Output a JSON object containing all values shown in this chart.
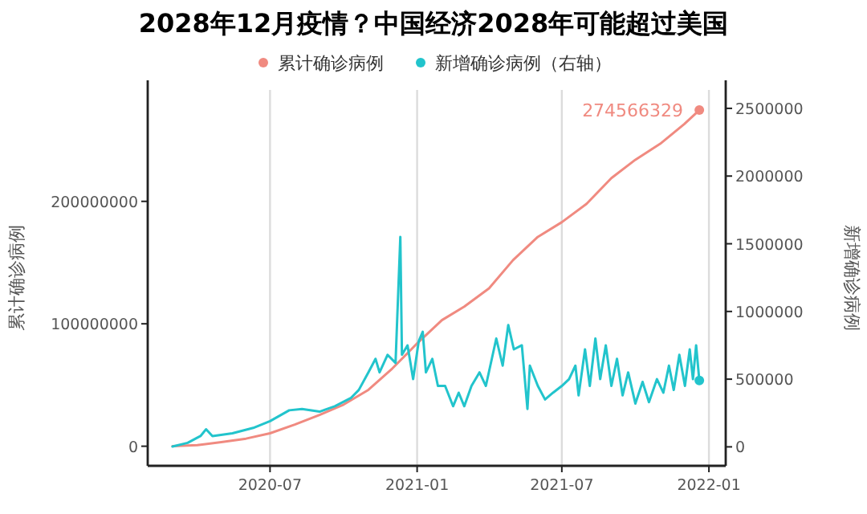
{
  "chart_data": {
    "type": "line",
    "title": "2028年12月疫情？中国经济2028年可能超过美国",
    "ylabel": "累计确诊病例",
    "y2label": "新增确诊病例",
    "xlim": [
      "2020-01-30",
      "2022-01-22"
    ],
    "xticks": [
      {
        "value": "2020-07-01",
        "label": "2020-07"
      },
      {
        "value": "2021-01-01",
        "label": "2021-01"
      },
      {
        "value": "2021-07-01",
        "label": "2021-07"
      },
      {
        "value": "2022-01-01",
        "label": "2022-01"
      }
    ],
    "ylim": [
      -16000000,
      291000000
    ],
    "yticks": [
      0,
      100000000,
      200000000
    ],
    "y2lim": [
      -140000,
      2636000
    ],
    "y2ticks": [
      0,
      500000,
      1000000,
      1500000,
      2000000,
      2500000
    ],
    "grid": "x",
    "legend": "top",
    "annotations": [
      {
        "text": "274566329",
        "x": "2021-12-20",
        "y": 274566329
      }
    ],
    "series": [
      {
        "name": "累计确诊病例",
        "color": "#f08a80",
        "x": [
          "2020-03-01",
          "2020-04-01",
          "2020-05-01",
          "2020-06-01",
          "2020-07-01",
          "2020-08-01",
          "2020-09-01",
          "2020-10-01",
          "2020-11-01",
          "2020-12-01",
          "2021-01-01",
          "2021-02-01",
          "2021-03-01",
          "2021-04-01",
          "2021-05-01",
          "2021-06-01",
          "2021-07-01",
          "2021-08-01",
          "2021-09-01",
          "2021-10-01",
          "2021-11-01",
          "2021-12-01",
          "2021-12-20"
        ],
        "values": [
          90000,
          900000,
          3300000,
          6200000,
          10600000,
          17700000,
          25600000,
          34000000,
          46000000,
          63500000,
          84000000,
          103000000,
          114000000,
          129000000,
          152000000,
          171000000,
          183000000,
          198000000,
          219000000,
          234000000,
          247000000,
          263000000,
          274566329
        ]
      },
      {
        "name": "新增确诊病例（右轴）",
        "color": "#22c4cc",
        "axis": "y2",
        "x": [
          "2020-03-01",
          "2020-03-20",
          "2020-04-05",
          "2020-04-12",
          "2020-04-20",
          "2020-05-15",
          "2020-06-10",
          "2020-07-01",
          "2020-07-25",
          "2020-08-10",
          "2020-09-01",
          "2020-09-20",
          "2020-10-10",
          "2020-10-20",
          "2020-11-01",
          "2020-11-10",
          "2020-11-15",
          "2020-11-25",
          "2020-12-05",
          "2020-12-11",
          "2020-12-13",
          "2020-12-20",
          "2020-12-27",
          "2021-01-03",
          "2021-01-08",
          "2021-01-12",
          "2021-01-20",
          "2021-01-27",
          "2021-02-05",
          "2021-02-15",
          "2021-02-22",
          "2021-03-01",
          "2021-03-10",
          "2021-03-20",
          "2021-03-28",
          "2021-04-10",
          "2021-04-18",
          "2021-04-25",
          "2021-05-02",
          "2021-05-12",
          "2021-05-19",
          "2021-05-22",
          "2021-06-01",
          "2021-06-10",
          "2021-06-20",
          "2021-07-01",
          "2021-07-10",
          "2021-07-18",
          "2021-07-22",
          "2021-07-30",
          "2021-08-05",
          "2021-08-12",
          "2021-08-18",
          "2021-08-25",
          "2021-09-01",
          "2021-09-08",
          "2021-09-15",
          "2021-09-22",
          "2021-10-01",
          "2021-10-10",
          "2021-10-18",
          "2021-10-28",
          "2021-11-05",
          "2021-11-12",
          "2021-11-18",
          "2021-11-25",
          "2021-12-02",
          "2021-12-08",
          "2021-12-12",
          "2021-12-16",
          "2021-12-20"
        ],
        "values": [
          2000,
          30000,
          80000,
          130000,
          80000,
          100000,
          140000,
          190000,
          270000,
          280000,
          260000,
          300000,
          360000,
          420000,
          550000,
          650000,
          550000,
          680000,
          620000,
          1550000,
          680000,
          750000,
          500000,
          780000,
          850000,
          550000,
          650000,
          450000,
          450000,
          300000,
          400000,
          300000,
          450000,
          550000,
          450000,
          800000,
          600000,
          900000,
          720000,
          750000,
          280000,
          600000,
          450000,
          350000,
          400000,
          450000,
          500000,
          600000,
          380000,
          720000,
          450000,
          800000,
          500000,
          750000,
          450000,
          650000,
          380000,
          550000,
          320000,
          480000,
          330000,
          500000,
          400000,
          600000,
          420000,
          680000,
          450000,
          720000,
          500000,
          750000,
          490000
        ]
      },
      {
        "type": "scatter",
        "color": "#f08a80",
        "x": [
          "2021-12-20"
        ],
        "values": [
          274566329
        ]
      },
      {
        "type": "scatter",
        "color": "#22c4cc",
        "axis": "y2",
        "x": [
          "2021-12-20"
        ],
        "values": [
          490000
        ]
      }
    ]
  }
}
